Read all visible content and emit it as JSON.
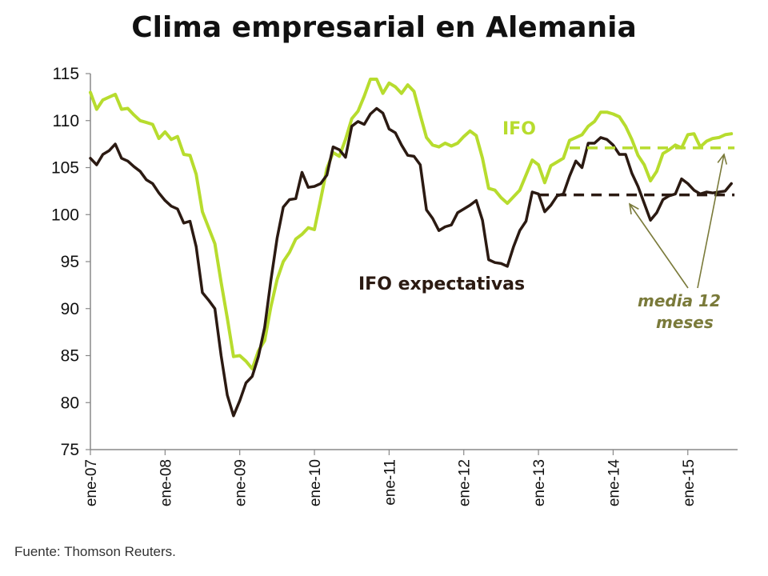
{
  "chart_data": {
    "type": "line",
    "title": "Clima empresarial en Alemania",
    "source": "Fuente: Thomson Reuters.",
    "ylim": [
      75,
      115
    ],
    "yticks": [
      "75",
      "80",
      "85",
      "90",
      "95",
      "100",
      "105",
      "110",
      "115"
    ],
    "xlim": [
      0,
      104
    ],
    "xticks": [
      {
        "label": "ene-07",
        "x": 0
      },
      {
        "label": "ene-08",
        "x": 12
      },
      {
        "label": "ene-09",
        "x": 24
      },
      {
        "label": "ene-10",
        "x": 36
      },
      {
        "label": "ene-11",
        "x": 48
      },
      {
        "label": "ene-12",
        "x": 60
      },
      {
        "label": "ene-13",
        "x": 72
      },
      {
        "label": "ene-14",
        "x": 84
      },
      {
        "label": "ene-15",
        "x": 96
      }
    ],
    "grid": false,
    "series": [
      {
        "name": "IFO",
        "color": "#b7dc2e",
        "points": [
          [
            0,
            113.0
          ],
          [
            1,
            111.2
          ],
          [
            2,
            112.2
          ],
          [
            3,
            112.5
          ],
          [
            4,
            112.8
          ],
          [
            5,
            111.2
          ],
          [
            6,
            111.3
          ],
          [
            7,
            110.6
          ],
          [
            8,
            110.0
          ],
          [
            9,
            109.8
          ],
          [
            10,
            109.6
          ],
          [
            11,
            108.1
          ],
          [
            12,
            108.8
          ],
          [
            13,
            108.0
          ],
          [
            14,
            108.3
          ],
          [
            15,
            106.4
          ],
          [
            16,
            106.3
          ],
          [
            17,
            104.3
          ],
          [
            18,
            100.3
          ],
          [
            19,
            98.6
          ],
          [
            20,
            96.9
          ],
          [
            21,
            92.8
          ],
          [
            22,
            89.0
          ],
          [
            23,
            84.9
          ],
          [
            24,
            85.0
          ],
          [
            25,
            84.4
          ],
          [
            26,
            83.6
          ],
          [
            27,
            85.5
          ],
          [
            28,
            86.6
          ],
          [
            29,
            90.2
          ],
          [
            30,
            93.1
          ],
          [
            31,
            95.0
          ],
          [
            32,
            96.0
          ],
          [
            33,
            97.4
          ],
          [
            34,
            97.9
          ],
          [
            35,
            98.6
          ],
          [
            36,
            98.4
          ],
          [
            37,
            101.6
          ],
          [
            38,
            104.9
          ],
          [
            39,
            106.6
          ],
          [
            40,
            106.2
          ],
          [
            41,
            108.0
          ],
          [
            42,
            110.2
          ],
          [
            43,
            111.0
          ],
          [
            44,
            112.6
          ],
          [
            45,
            114.4
          ],
          [
            46,
            114.4
          ],
          [
            47,
            112.9
          ],
          [
            48,
            114.0
          ],
          [
            49,
            113.6
          ],
          [
            50,
            112.9
          ],
          [
            51,
            113.8
          ],
          [
            52,
            113.1
          ],
          [
            53,
            110.6
          ],
          [
            54,
            108.2
          ],
          [
            55,
            107.4
          ],
          [
            56,
            107.2
          ],
          [
            57,
            107.6
          ],
          [
            58,
            107.3
          ],
          [
            59,
            107.6
          ],
          [
            60,
            108.3
          ],
          [
            61,
            108.9
          ],
          [
            62,
            108.4
          ],
          [
            63,
            106.0
          ],
          [
            64,
            102.8
          ],
          [
            65,
            102.6
          ],
          [
            66,
            101.8
          ],
          [
            67,
            101.2
          ],
          [
            68,
            101.9
          ],
          [
            69,
            102.6
          ],
          [
            70,
            104.2
          ],
          [
            71,
            105.8
          ],
          [
            72,
            105.3
          ],
          [
            73,
            103.4
          ],
          [
            74,
            105.2
          ],
          [
            75,
            105.6
          ],
          [
            76,
            106.0
          ],
          [
            77,
            107.9
          ],
          [
            78,
            108.2
          ],
          [
            79,
            108.5
          ],
          [
            80,
            109.4
          ],
          [
            81,
            109.9
          ],
          [
            82,
            110.9
          ],
          [
            83,
            110.9
          ],
          [
            84,
            110.7
          ],
          [
            85,
            110.4
          ],
          [
            86,
            109.4
          ],
          [
            87,
            108.0
          ],
          [
            88,
            106.3
          ],
          [
            89,
            105.3
          ],
          [
            90,
            103.6
          ],
          [
            91,
            104.6
          ],
          [
            92,
            106.5
          ],
          [
            93,
            106.9
          ],
          [
            94,
            107.4
          ],
          [
            95,
            107.1
          ],
          [
            96,
            108.5
          ],
          [
            97,
            108.6
          ],
          [
            98,
            107.2
          ],
          [
            99,
            107.8
          ],
          [
            100,
            108.1
          ],
          [
            101,
            108.2
          ],
          [
            102,
            108.5
          ],
          [
            103,
            108.6
          ]
        ]
      },
      {
        "name": "IFO expectativas",
        "color": "#2b1a12",
        "points": [
          [
            0,
            106.0
          ],
          [
            1,
            105.3
          ],
          [
            2,
            106.4
          ],
          [
            3,
            106.8
          ],
          [
            4,
            107.5
          ],
          [
            5,
            106.0
          ],
          [
            6,
            105.7
          ],
          [
            7,
            105.1
          ],
          [
            8,
            104.6
          ],
          [
            9,
            103.7
          ],
          [
            10,
            103.3
          ],
          [
            11,
            102.3
          ],
          [
            12,
            101.5
          ],
          [
            13,
            100.9
          ],
          [
            14,
            100.6
          ],
          [
            15,
            99.1
          ],
          [
            16,
            99.3
          ],
          [
            17,
            96.6
          ],
          [
            18,
            91.7
          ],
          [
            19,
            90.9
          ],
          [
            20,
            90.0
          ],
          [
            21,
            85.0
          ],
          [
            22,
            80.8
          ],
          [
            23,
            78.6
          ],
          [
            24,
            80.2
          ],
          [
            25,
            82.1
          ],
          [
            26,
            82.8
          ],
          [
            27,
            84.9
          ],
          [
            28,
            88.0
          ],
          [
            29,
            93.0
          ],
          [
            30,
            97.5
          ],
          [
            31,
            100.8
          ],
          [
            32,
            101.6
          ],
          [
            33,
            101.7
          ],
          [
            34,
            104.5
          ],
          [
            35,
            102.9
          ],
          [
            36,
            103.0
          ],
          [
            37,
            103.3
          ],
          [
            38,
            104.2
          ],
          [
            39,
            107.2
          ],
          [
            40,
            106.9
          ],
          [
            41,
            106.1
          ],
          [
            42,
            109.4
          ],
          [
            43,
            109.9
          ],
          [
            44,
            109.6
          ],
          [
            45,
            110.7
          ],
          [
            46,
            111.3
          ],
          [
            47,
            110.8
          ],
          [
            48,
            109.1
          ],
          [
            49,
            108.7
          ],
          [
            50,
            107.4
          ],
          [
            51,
            106.3
          ],
          [
            52,
            106.2
          ],
          [
            53,
            105.3
          ],
          [
            54,
            100.5
          ],
          [
            55,
            99.6
          ],
          [
            56,
            98.3
          ],
          [
            57,
            98.7
          ],
          [
            58,
            98.9
          ],
          [
            59,
            100.2
          ],
          [
            60,
            100.6
          ],
          [
            61,
            101.0
          ],
          [
            62,
            101.5
          ],
          [
            63,
            99.4
          ],
          [
            64,
            95.2
          ],
          [
            65,
            94.9
          ],
          [
            66,
            94.8
          ],
          [
            67,
            94.5
          ],
          [
            68,
            96.6
          ],
          [
            69,
            98.3
          ],
          [
            70,
            99.3
          ],
          [
            71,
            102.4
          ],
          [
            72,
            102.2
          ],
          [
            73,
            100.3
          ],
          [
            74,
            101.0
          ],
          [
            75,
            102.0
          ],
          [
            76,
            102.2
          ],
          [
            77,
            104.1
          ],
          [
            78,
            105.7
          ],
          [
            79,
            105.0
          ],
          [
            80,
            107.6
          ],
          [
            81,
            107.6
          ],
          [
            82,
            108.2
          ],
          [
            83,
            108.0
          ],
          [
            84,
            107.4
          ],
          [
            85,
            106.4
          ],
          [
            86,
            106.4
          ],
          [
            87,
            104.4
          ],
          [
            88,
            103.0
          ],
          [
            89,
            101.2
          ],
          [
            90,
            99.4
          ],
          [
            91,
            100.2
          ],
          [
            92,
            101.6
          ],
          [
            93,
            102.0
          ],
          [
            94,
            102.2
          ],
          [
            95,
            103.8
          ],
          [
            96,
            103.3
          ],
          [
            97,
            102.6
          ],
          [
            98,
            102.2
          ],
          [
            99,
            102.4
          ],
          [
            100,
            102.3
          ],
          [
            101,
            102.4
          ],
          [
            102,
            102.5
          ],
          [
            103,
            103.3
          ]
        ]
      }
    ],
    "reference_lines": [
      {
        "series": "IFO",
        "y": 107.1,
        "x_start": 77,
        "x_end": 104,
        "color": "#b7dc2e",
        "style": "dashed"
      },
      {
        "series": "IFO expectativas",
        "y": 102.1,
        "x_start": 72,
        "x_end": 104,
        "color": "#2b1a12",
        "style": "dashed"
      }
    ],
    "annotations": [
      {
        "text": "IFO",
        "color": "#b7dc2e"
      },
      {
        "text": "IFO expectativas",
        "color": "#2b1a12"
      },
      {
        "text": "media 12",
        "color": "#7a7a3a"
      },
      {
        "text": "meses",
        "color": "#7a7a3a"
      }
    ]
  }
}
